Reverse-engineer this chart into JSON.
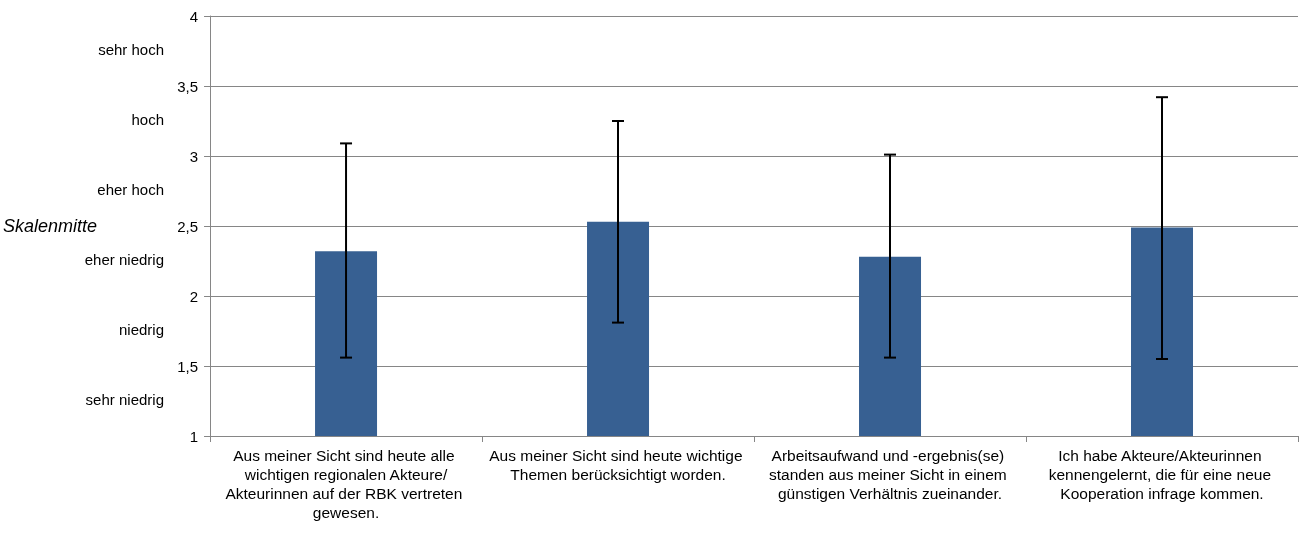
{
  "chart_data": {
    "type": "bar",
    "categories": [
      "Aus meiner Sicht sind heute alle wichtigen regionalen Akteure/Akteurinnen auf der RBK vertreten gewesen.",
      "Aus meiner Sicht sind heute wichtige Themen berücksichtigt worden.",
      "Arbeitsaufwand und -ergebnis(se) standen aus meiner Sicht in einem günstigen Verhältnis zueinander.",
      "Ich habe Akteure/Akteurinnen kennengelernt, die für eine neue Kooperation infrage kommen."
    ],
    "series": [
      {
        "color": "#376092",
        "values": [
          2.32,
          2.53,
          2.28,
          2.49
        ],
        "errors": [
          [
            1.56,
            3.09
          ],
          [
            1.81,
            3.25
          ],
          [
            1.56,
            3.01
          ],
          [
            1.55,
            3.42
          ]
        ]
      }
    ],
    "ylim": [
      1,
      4
    ],
    "yticks": [
      1,
      {
        "value": 1.5,
        "label": "1,5"
      },
      2,
      {
        "value": 2.5,
        "label": "2,5"
      },
      3,
      {
        "value": 3.5,
        "label": "3,5"
      },
      4
    ],
    "grid": "y",
    "ylabel": "Skalenmitte",
    "annotations": [
      "sehr hoch",
      "hoch",
      "eher hoch",
      "eher niedrig",
      "niedrig",
      "sehr niedrig"
    ]
  }
}
